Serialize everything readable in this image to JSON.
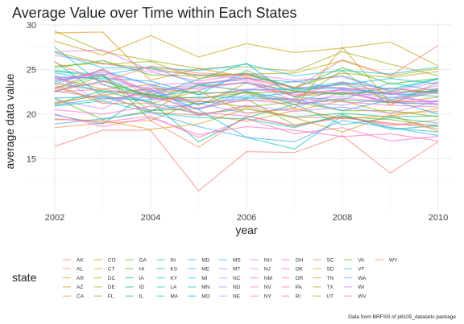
{
  "chart_data": {
    "type": "line",
    "title": "Average Value over Time within Each States",
    "xlabel": "year",
    "ylabel": "average data value",
    "caption": "Data from BRFSS of p8105_datasets package",
    "legend_title": "state",
    "x": [
      2002,
      2003,
      2004,
      2005,
      2006,
      2007,
      2008,
      2009,
      2010
    ],
    "xticks": [
      2002,
      2004,
      2006,
      2008,
      2010
    ],
    "xlim": [
      2002,
      2010
    ],
    "yticks": [
      15,
      20,
      25,
      30
    ],
    "ylim": [
      10,
      30
    ],
    "grid": true,
    "legend_position": "bottom",
    "series": [
      {
        "name": "AK",
        "color": "#F8766D",
        "values": [
          16.4,
          18.2,
          18.2,
          11.4,
          15.8,
          15.7,
          17.6,
          13.4,
          16.9
        ]
      },
      {
        "name": "AL",
        "color": "#F07E4E",
        "values": [
          18.5,
          19.0,
          19.3,
          16.3,
          19.8,
          18.6,
          19.8,
          18.7,
          19.4
        ]
      },
      {
        "name": "AR",
        "color": "#E7861B",
        "values": [
          23.0,
          21.6,
          22.4,
          20.0,
          19.2,
          20.4,
          21.5,
          20.1,
          20.3
        ]
      },
      {
        "name": "AZ",
        "color": "#DB8E00",
        "values": [
          29.1,
          29.2,
          23.8,
          25.1,
          24.2,
          22.6,
          23.4,
          21.6,
          22.8
        ]
      },
      {
        "name": "CA",
        "color": "#CF9400",
        "values": [
          28.2,
          26.6,
          28.8,
          26.4,
          27.9,
          26.9,
          27.4,
          28.1,
          25.4
        ]
      },
      {
        "name": "CO",
        "color": "#C09B00",
        "values": [
          25.4,
          25.7,
          25.1,
          24.4,
          24.5,
          24.6,
          26.0,
          24.3,
          25.1
        ]
      },
      {
        "name": "CT",
        "color": "#B0A100",
        "values": [
          24.1,
          22.8,
          23.3,
          21.0,
          23.5,
          22.0,
          22.4,
          21.4,
          22.5
        ]
      },
      {
        "name": "DC",
        "color": "#9EA700",
        "values": [
          29.3,
          27.0,
          26.0,
          25.1,
          25.3,
          24.8,
          27.0,
          25.6,
          24.3
        ]
      },
      {
        "name": "DE",
        "color": "#89AC00",
        "values": [
          22.5,
          24.3,
          20.3,
          23.4,
          22.5,
          21.6,
          24.9,
          21.0,
          23.6
        ]
      },
      {
        "name": "FL",
        "color": "#72B000",
        "values": [
          22.9,
          24.5,
          19.3,
          21.5,
          20.8,
          21.4,
          20.4,
          20.4,
          19.7
        ]
      },
      {
        "name": "GA",
        "color": "#55B400",
        "values": [
          21.8,
          19.4,
          20.4,
          20.6,
          21.7,
          18.8,
          19.7,
          19.4,
          18.6
        ]
      },
      {
        "name": "HI",
        "color": "#27B700",
        "values": [
          25.2,
          26.0,
          24.4,
          24.3,
          24.5,
          22.9,
          25.2,
          23.4,
          24.0
        ]
      },
      {
        "name": "IA",
        "color": "#00BA38",
        "values": [
          23.5,
          22.6,
          22.2,
          21.1,
          22.5,
          21.1,
          21.6,
          21.3,
          21.1
        ]
      },
      {
        "name": "ID",
        "color": "#00BC59",
        "values": [
          21.2,
          22.6,
          21.3,
          20.0,
          20.6,
          19.7,
          20.1,
          19.7,
          19.8
        ]
      },
      {
        "name": "IL",
        "color": "#00BE70",
        "values": [
          24.8,
          24.2,
          21.7,
          23.2,
          23.5,
          22.6,
          22.2,
          22.9,
          22.3
        ]
      },
      {
        "name": "IN",
        "color": "#00C085",
        "values": [
          25.9,
          22.0,
          21.4,
          16.9,
          19.6,
          21.1,
          18.8,
          19.6,
          19.0
        ]
      },
      {
        "name": "KS",
        "color": "#00C098",
        "values": [
          27.5,
          23.3,
          22.1,
          23.9,
          25.7,
          21.9,
          21.6,
          23.5,
          22.6
        ]
      },
      {
        "name": "KY",
        "color": "#00C1AA",
        "values": [
          20.9,
          21.5,
          20.2,
          19.6,
          19.5,
          18.5,
          20.0,
          18.3,
          18.7
        ]
      },
      {
        "name": "LA",
        "color": "#00C0BB",
        "values": [
          19.9,
          18.9,
          22.6,
          20.5,
          17.4,
          16.1,
          19.8,
          18.5,
          18.0
        ]
      },
      {
        "name": "MA",
        "color": "#00BECB",
        "values": [
          23.6,
          24.9,
          23.3,
          22.2,
          24.9,
          22.8,
          23.6,
          22.8,
          24.0
        ]
      },
      {
        "name": "MD",
        "color": "#00BBDA",
        "values": [
          24.6,
          23.8,
          22.0,
          22.6,
          24.5,
          22.9,
          23.3,
          24.0,
          23.4
        ]
      },
      {
        "name": "ME",
        "color": "#00B7E7",
        "values": [
          24.9,
          24.4,
          25.3,
          23.3,
          24.0,
          23.6,
          24.3,
          22.6,
          23.9
        ]
      },
      {
        "name": "MI",
        "color": "#00B2F3",
        "values": [
          21.0,
          21.8,
          21.6,
          21.9,
          21.9,
          22.4,
          23.5,
          21.8,
          22.8
        ]
      },
      {
        "name": "MN",
        "color": "#00ACFC",
        "values": [
          24.2,
          24.0,
          23.7,
          22.2,
          22.7,
          22.8,
          22.9,
          22.3,
          22.0
        ]
      },
      {
        "name": "MO",
        "color": "#00A5FF",
        "values": [
          21.8,
          22.0,
          20.4,
          21.2,
          21.8,
          21.7,
          20.4,
          21.6,
          20.0
        ]
      },
      {
        "name": "MS",
        "color": "#3A9EFF",
        "values": [
          18.9,
          19.5,
          20.2,
          18.6,
          17.4,
          16.9,
          19.3,
          18.5,
          17.6
        ]
      },
      {
        "name": "MT",
        "color": "#7997FF",
        "values": [
          24.1,
          22.4,
          22.8,
          20.5,
          22.6,
          21.4,
          22.8,
          21.6,
          22.6
        ]
      },
      {
        "name": "NC",
        "color": "#9A8FFF",
        "values": [
          22.6,
          21.8,
          21.9,
          20.6,
          22.2,
          21.4,
          21.0,
          21.9,
          21.4
        ]
      },
      {
        "name": "ND",
        "color": "#B385FF",
        "values": [
          24.4,
          21.2,
          22.7,
          21.2,
          20.1,
          20.7,
          22.5,
          21.3,
          21.2
        ]
      },
      {
        "name": "NE",
        "color": "#C77CFF",
        "values": [
          21.6,
          20.6,
          23.2,
          19.8,
          21.0,
          20.3,
          20.8,
          20.1,
          21.5
        ]
      },
      {
        "name": "NH",
        "color": "#D874FD",
        "values": [
          23.8,
          24.7,
          23.3,
          23.5,
          23.8,
          22.2,
          22.5,
          21.3,
          22.7
        ]
      },
      {
        "name": "NJ",
        "color": "#E46DF6",
        "values": [
          23.0,
          23.4,
          21.1,
          20.7,
          21.6,
          21.1,
          21.8,
          21.4,
          21.4
        ]
      },
      {
        "name": "NM",
        "color": "#EE67EC",
        "values": [
          26.6,
          25.7,
          24.7,
          23.7,
          24.5,
          23.8,
          24.2,
          22.5,
          23.6
        ]
      },
      {
        "name": "NV",
        "color": "#F663E1",
        "values": [
          27.0,
          27.2,
          24.9,
          24.4,
          24.0,
          23.0,
          23.0,
          22.2,
          23.2
        ]
      },
      {
        "name": "NY",
        "color": "#FC61D5",
        "values": [
          23.4,
          25.0,
          21.8,
          21.6,
          22.8,
          22.4,
          22.7,
          21.3,
          21.5
        ]
      },
      {
        "name": "OH",
        "color": "#FF61C7",
        "values": [
          20.5,
          20.0,
          20.9,
          20.2,
          19.8,
          18.7,
          19.6,
          18.9,
          18.8
        ]
      },
      {
        "name": "OK",
        "color": "#FF62B9",
        "values": [
          20.0,
          18.6,
          19.6,
          17.7,
          18.6,
          18.2,
          17.5,
          17.8,
          17.0
        ]
      },
      {
        "name": "OR",
        "color": "#FF65AA",
        "values": [
          24.0,
          24.5,
          22.6,
          23.4,
          24.1,
          22.0,
          23.6,
          22.3,
          22.9
        ]
      },
      {
        "name": "PA",
        "color": "#FF6A98",
        "values": [
          22.5,
          22.8,
          21.9,
          21.4,
          21.5,
          21.7,
          21.4,
          21.0,
          20.8
        ]
      },
      {
        "name": "RI",
        "color": "#FF6C91",
        "values": [
          22.8,
          25.1,
          22.2,
          23.0,
          23.6,
          22.0,
          22.8,
          22.9,
          22.4
        ]
      },
      {
        "name": "SC",
        "color": "#F8766D",
        "values": [
          21.1,
          22.3,
          20.2,
          19.9,
          20.9,
          19.6,
          19.6,
          19.0,
          18.4
        ]
      },
      {
        "name": "SD",
        "color": "#E88526",
        "values": [
          23.3,
          21.2,
          21.2,
          22.6,
          20.1,
          20.6,
          19.5,
          19.8,
          20.6
        ]
      },
      {
        "name": "TN",
        "color": "#D39200",
        "values": [
          19.4,
          19.3,
          18.3,
          18.9,
          20.6,
          19.6,
          18.0,
          19.9,
          18.1
        ]
      },
      {
        "name": "TX",
        "color": "#B79F00",
        "values": [
          21.3,
          22.1,
          22.9,
          22.4,
          22.4,
          20.7,
          27.5,
          21.3,
          21.9
        ]
      },
      {
        "name": "UT",
        "color": "#93AA00",
        "values": [
          27.0,
          25.6,
          25.9,
          24.0,
          24.6,
          23.0,
          24.6,
          24.1,
          24.8
        ]
      },
      {
        "name": "VA",
        "color": "#5EB300",
        "values": [
          22.6,
          23.7,
          22.0,
          21.8,
          22.4,
          22.5,
          22.3,
          22.5,
          22.6
        ]
      },
      {
        "name": "VT",
        "color": "#00B9E3",
        "values": [
          26.9,
          25.2,
          25.2,
          24.9,
          25.6,
          24.3,
          24.9,
          24.5,
          25.3
        ]
      },
      {
        "name": "WA",
        "color": "#619CFF",
        "values": [
          23.8,
          24.3,
          22.5,
          23.2,
          22.7,
          23.7,
          22.8,
          22.2,
          22.6
        ]
      },
      {
        "name": "WI",
        "color": "#DB72FB",
        "values": [
          22.6,
          23.7,
          22.9,
          22.8,
          23.6,
          21.5,
          22.0,
          22.4,
          21.0
        ]
      },
      {
        "name": "WV",
        "color": "#FF61C3",
        "values": [
          19.5,
          19.1,
          19.8,
          17.4,
          19.5,
          17.8,
          18.5,
          17.0,
          17.5
        ]
      },
      {
        "name": "WY",
        "color": "#F8766D",
        "values": [
          25.8,
          23.6,
          25.4,
          24.6,
          24.4,
          22.9,
          26.1,
          24.3,
          27.7
        ]
      }
    ]
  }
}
